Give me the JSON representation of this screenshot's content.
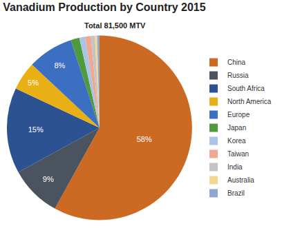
{
  "chart_data": {
    "type": "pie",
    "title": "Vanadium Production by Country 2015",
    "subtitle": "Total 81,500 MTV",
    "categories": [
      "China",
      "Russia",
      "South Africa",
      "North America",
      "Europe",
      "Japan",
      "Korea",
      "Taiwan",
      "India",
      "Australia",
      "Brazil"
    ],
    "values": [
      58,
      9,
      15,
      5,
      8,
      1.5,
      1,
      1,
      0.7,
      0.4,
      0.4
    ],
    "value_labels": [
      "58%",
      "9%",
      "15%",
      "5%",
      "8%",
      null,
      null,
      null,
      null,
      null,
      null
    ],
    "colors": [
      "#cc6a24",
      "#4b545e",
      "#2c5292",
      "#e8b014",
      "#3c6ec2",
      "#4f9a3a",
      "#a9c4e6",
      "#f0a890",
      "#c4c4c4",
      "#f5d890",
      "#8fa8d0"
    ],
    "data_labels": true,
    "legend": "right"
  }
}
